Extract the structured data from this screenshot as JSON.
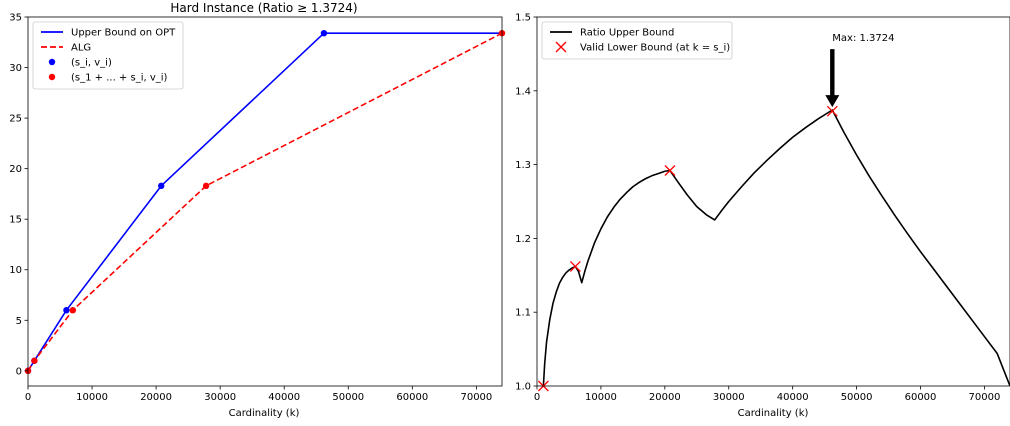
{
  "figure": {
    "title": "Hard Instance (Ratio ≥ 1.3724)"
  },
  "chart_data": [
    {
      "type": "line",
      "xlabel": "Cardinality (k)",
      "ylabel": "",
      "xlim": [
        0,
        74000
      ],
      "ylim": [
        -1.5,
        35
      ],
      "xticks": [
        0,
        10000,
        20000,
        30000,
        40000,
        50000,
        60000,
        70000
      ],
      "yticks": [
        0,
        5,
        10,
        15,
        20,
        25,
        30,
        35
      ],
      "grid": false,
      "legend_position": "top-left",
      "series": [
        {
          "name": "Upper Bound on OPT",
          "style": "solid",
          "color": "#0000ff",
          "x": [
            0,
            1000,
            6000,
            20800,
            46200,
            74000
          ],
          "y": [
            0,
            1,
            6,
            18.3,
            33.4,
            33.4
          ]
        },
        {
          "name": "ALG",
          "style": "dashed",
          "color": "#ff0000",
          "x": [
            0,
            1000,
            7000,
            27800,
            74000
          ],
          "y": [
            0,
            1,
            6,
            18.3,
            33.4
          ]
        },
        {
          "name": "(s_i, v_i)",
          "style": "points",
          "color": "#0000ff",
          "x": [
            0,
            1000,
            6000,
            20800,
            46200
          ],
          "y": [
            0,
            1,
            6,
            18.3,
            33.4
          ]
        },
        {
          "name": "(s_1 + ... + s_i, v_i)",
          "style": "points",
          "color": "#ff0000",
          "x": [
            0,
            1000,
            7000,
            27800,
            74000
          ],
          "y": [
            0,
            1,
            6,
            18.3,
            33.4
          ]
        }
      ]
    },
    {
      "type": "line",
      "xlabel": "Cardinality (k)",
      "ylabel": "",
      "xlim": [
        0,
        74000
      ],
      "ylim": [
        1.0,
        1.5
      ],
      "xticks": [
        0,
        10000,
        20000,
        30000,
        40000,
        50000,
        60000,
        70000
      ],
      "yticks": [
        1.0,
        1.1,
        1.2,
        1.3,
        1.4,
        1.5
      ],
      "grid": false,
      "legend_position": "top-left",
      "series": [
        {
          "name": "Ratio Upper Bound",
          "style": "solid",
          "color": "#000000",
          "x": [
            1000,
            1200,
            1500,
            2000,
            2500,
            3000,
            3500,
            4000,
            4500,
            5000,
            5500,
            6000,
            6500,
            7000,
            7500,
            8000,
            9000,
            10000,
            11000,
            12000,
            13000,
            14000,
            15000,
            16000,
            17000,
            18000,
            19000,
            20000,
            20800,
            22000,
            23500,
            25000,
            26500,
            27800,
            29000,
            30000,
            32000,
            34000,
            36000,
            38000,
            40000,
            42000,
            44000,
            46200,
            48000,
            50000,
            52000,
            54000,
            56000,
            58000,
            60000,
            62000,
            64000,
            66000,
            68000,
            70000,
            72000,
            74000
          ],
          "y": [
            1.0,
            1.03,
            1.06,
            1.09,
            1.112,
            1.127,
            1.139,
            1.147,
            1.153,
            1.157,
            1.16,
            1.162,
            1.155,
            1.14,
            1.156,
            1.17,
            1.194,
            1.213,
            1.229,
            1.242,
            1.253,
            1.262,
            1.27,
            1.276,
            1.281,
            1.285,
            1.288,
            1.291,
            1.292,
            1.277,
            1.259,
            1.243,
            1.232,
            1.225,
            1.239,
            1.25,
            1.27,
            1.289,
            1.306,
            1.322,
            1.337,
            1.35,
            1.362,
            1.374,
            1.344,
            1.313,
            1.284,
            1.257,
            1.231,
            1.206,
            1.182,
            1.159,
            1.136,
            1.113,
            1.09,
            1.067,
            1.044,
            1.0
          ]
        },
        {
          "name": "Valid Lower Bound (at k = s_i)",
          "style": "x-markers",
          "color": "#ff0000",
          "x": [
            1000,
            6000,
            20800,
            46200
          ],
          "y": [
            1.0,
            1.162,
            1.292,
            1.3724
          ]
        }
      ],
      "annotations": [
        {
          "text": "Max: 1.3724",
          "x": 46200,
          "y": 1.3724
        }
      ]
    }
  ]
}
